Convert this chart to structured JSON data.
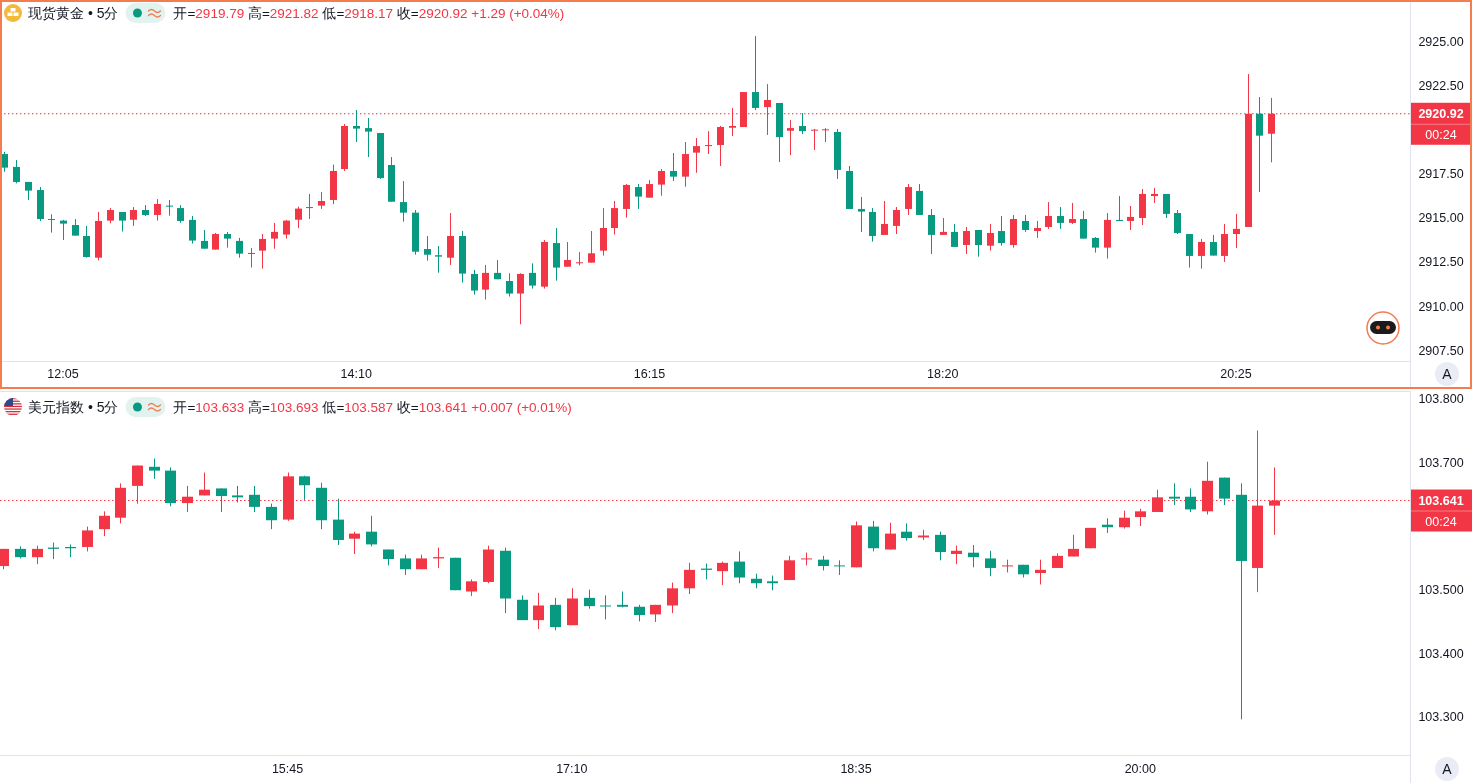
{
  "chart_data": [
    {
      "type": "candlestick",
      "title": "现货黄金 • 5分",
      "subtitle": "开=2919.79 高=2921.82 低=2918.17 收=2920.92 +1.29 (+0.04%)",
      "x": [
        11.6667,
        11.75,
        11.8333,
        11.9167,
        12,
        12.0833,
        12.1667,
        12.25,
        12.3333,
        12.4167,
        12.5,
        12.5833,
        12.6667,
        12.75,
        12.8333,
        12.9167,
        13,
        13.0833,
        13.1667,
        13.25,
        13.3333,
        13.4167,
        13.5,
        13.5833,
        13.6667,
        13.75,
        13.8333,
        13.9167,
        14,
        14.0833,
        14.1667,
        14.25,
        14.3333,
        14.4167,
        14.5,
        14.5833,
        14.6667,
        14.75,
        14.8333,
        14.9167,
        15,
        15.0833,
        15.1667,
        15.25,
        15.3333,
        15.4167,
        15.5,
        15.5833,
        15.6667,
        15.75,
        15.8333,
        15.9167,
        16,
        16.0833,
        16.1667,
        16.25,
        16.3333,
        16.4167,
        16.5,
        16.5833,
        16.6667,
        16.75,
        16.8333,
        16.9167,
        17,
        17.0833,
        17.1667,
        17.25,
        17.3333,
        17.4167,
        17.5,
        17.5833,
        17.6667,
        17.75,
        17.8333,
        17.9167,
        18,
        18.0833,
        18.1667,
        18.25,
        18.3333,
        18.4167,
        18.5,
        18.5833,
        18.6667,
        18.75,
        18.8333,
        18.9167,
        19,
        19.0833,
        19.1667,
        19.25,
        19.3333,
        19.4167,
        19.5,
        19.5833,
        19.6667,
        19.75,
        19.8333,
        19.9167,
        20,
        20.0833,
        20.1667,
        20.25,
        20.3333,
        20.4167,
        20.5,
        20.5833,
        20.6667
      ],
      "ohlc": [
        [
          2918.64,
          2918.77,
          2917.64,
          2917.87
        ],
        [
          2917.91,
          2918.3,
          2916.98,
          2917.06
        ],
        [
          2917.06,
          2917.06,
          2916.04,
          2916.57
        ],
        [
          2916.6,
          2916.77,
          2914.85,
          2914.96
        ],
        [
          2914.96,
          2915.23,
          2914.19,
          2914.91
        ],
        [
          2914.87,
          2914.91,
          2913.77,
          2914.7
        ],
        [
          2914.62,
          2914.96,
          2914.02,
          2914.02
        ],
        [
          2914.0,
          2914.57,
          2912.77,
          2912.81
        ],
        [
          2912.77,
          2915.36,
          2912.62,
          2914.85
        ],
        [
          2914.87,
          2915.58,
          2914.72,
          2915.47
        ],
        [
          2915.36,
          2915.36,
          2914.25,
          2914.87
        ],
        [
          2914.92,
          2915.64,
          2914.57,
          2915.47
        ],
        [
          2915.47,
          2915.75,
          2915.13,
          2915.19
        ],
        [
          2915.19,
          2916.09,
          2914.87,
          2915.81
        ],
        [
          2915.72,
          2916.04,
          2915.15,
          2915.66
        ],
        [
          2915.58,
          2915.75,
          2914.75,
          2914.85
        ],
        [
          2914.91,
          2915.13,
          2913.57,
          2913.74
        ],
        [
          2913.72,
          2914.34,
          2913.28,
          2913.28
        ],
        [
          2913.23,
          2914.17,
          2913.23,
          2914.11
        ],
        [
          2914.11,
          2914.23,
          2913.34,
          2913.85
        ],
        [
          2913.72,
          2913.89,
          2912.77,
          2913.0
        ],
        [
          2912.98,
          2913.32,
          2912.21,
          2913.04
        ],
        [
          2913.17,
          2914.11,
          2912.15,
          2913.83
        ],
        [
          2913.85,
          2914.74,
          2913.28,
          2914.23
        ],
        [
          2914.08,
          2914.91,
          2913.85,
          2914.87
        ],
        [
          2914.92,
          2915.66,
          2914.45,
          2915.55
        ],
        [
          2915.58,
          2916.38,
          2914.96,
          2915.64
        ],
        [
          2915.72,
          2916.49,
          2915.53,
          2915.98
        ],
        [
          2916.04,
          2918.04,
          2915.81,
          2917.68
        ],
        [
          2917.79,
          2920.34,
          2917.68,
          2920.23
        ],
        [
          2920.23,
          2921.13,
          2919.32,
          2920.08
        ],
        [
          2920.11,
          2920.68,
          2918.47,
          2919.91
        ],
        [
          2919.83,
          2919.83,
          2917.23,
          2917.28
        ],
        [
          2918.02,
          2918.47,
          2915.94,
          2915.94
        ],
        [
          2915.92,
          2917.11,
          2914.81,
          2915.32
        ],
        [
          2915.32,
          2915.47,
          2912.94,
          2913.11
        ],
        [
          2913.26,
          2914.0,
          2912.6,
          2912.94
        ],
        [
          2912.91,
          2913.43,
          2911.92,
          2912.83
        ],
        [
          2912.77,
          2915.3,
          2912.36,
          2914.0
        ],
        [
          2914.0,
          2914.28,
          2911.36,
          2911.87
        ],
        [
          2911.85,
          2912.08,
          2910.68,
          2910.91
        ],
        [
          2910.96,
          2912.36,
          2910.4,
          2911.91
        ],
        [
          2911.91,
          2912.64,
          2911.55,
          2911.55
        ],
        [
          2911.45,
          2911.89,
          2910.57,
          2910.74
        ],
        [
          2910.74,
          2911.89,
          2909.0,
          2911.85
        ],
        [
          2911.91,
          2912.45,
          2911.02,
          2911.19
        ],
        [
          2911.13,
          2913.77,
          2911.02,
          2913.66
        ],
        [
          2913.6,
          2914.45,
          2911.47,
          2912.21
        ],
        [
          2912.26,
          2913.66,
          2912.26,
          2912.64
        ],
        [
          2912.47,
          2913.09,
          2912.34,
          2912.51
        ],
        [
          2912.49,
          2914.28,
          2912.49,
          2913.02
        ],
        [
          2913.17,
          2915.58,
          2912.89,
          2914.45
        ],
        [
          2914.45,
          2915.98,
          2914.08,
          2915.58
        ],
        [
          2915.53,
          2916.94,
          2915.04,
          2916.89
        ],
        [
          2916.77,
          2916.94,
          2915.53,
          2916.23
        ],
        [
          2916.17,
          2917.17,
          2916.17,
          2916.94
        ],
        [
          2916.91,
          2917.79,
          2916.28,
          2917.68
        ],
        [
          2917.68,
          2918.7,
          2917.11,
          2917.36
        ],
        [
          2917.36,
          2919.32,
          2916.79,
          2918.64
        ],
        [
          2918.72,
          2919.55,
          2917.58,
          2919.09
        ],
        [
          2919.09,
          2919.94,
          2918.64,
          2919.15
        ],
        [
          2919.15,
          2920.23,
          2917.96,
          2920.17
        ],
        [
          2920.13,
          2921.25,
          2919.66,
          2920.23
        ],
        [
          2920.17,
          2922.15,
          2920.17,
          2922.15
        ],
        [
          2922.15,
          2925.32,
          2921.13,
          2921.25
        ],
        [
          2921.3,
          2922.6,
          2919.72,
          2921.7
        ],
        [
          2921.53,
          2921.53,
          2918.19,
          2919.6
        ],
        [
          2919.96,
          2920.57,
          2918.58,
          2920.11
        ],
        [
          2920.23,
          2920.96,
          2919.77,
          2919.94
        ],
        [
          2919.98,
          2920.06,
          2918.87,
          2920.02
        ],
        [
          2920.0,
          2920.11,
          2919.32,
          2920.04
        ],
        [
          2919.89,
          2920.06,
          2917.23,
          2917.74
        ],
        [
          2917.68,
          2917.96,
          2915.53,
          2915.53
        ],
        [
          2915.53,
          2916.21,
          2914.23,
          2915.38
        ],
        [
          2915.36,
          2915.58,
          2913.68,
          2914.0
        ],
        [
          2914.06,
          2915.98,
          2914.06,
          2914.68
        ],
        [
          2914.57,
          2915.64,
          2914.11,
          2915.47
        ],
        [
          2915.53,
          2916.94,
          2915.19,
          2916.77
        ],
        [
          2916.55,
          2916.94,
          2915.19,
          2915.19
        ],
        [
          2915.19,
          2915.53,
          2912.98,
          2914.06
        ],
        [
          2914.06,
          2915.02,
          2914.06,
          2914.23
        ],
        [
          2914.23,
          2914.68,
          2913.38,
          2913.38
        ],
        [
          2913.49,
          2914.51,
          2912.98,
          2914.28
        ],
        [
          2914.34,
          2914.34,
          2912.83,
          2913.49
        ],
        [
          2913.45,
          2914.68,
          2913.17,
          2914.17
        ],
        [
          2914.28,
          2915.13,
          2913.45,
          2913.6
        ],
        [
          2913.49,
          2915.19,
          2913.34,
          2914.96
        ],
        [
          2914.85,
          2915.19,
          2914.23,
          2914.34
        ],
        [
          2914.28,
          2914.85,
          2913.89,
          2914.45
        ],
        [
          2914.51,
          2915.92,
          2914.4,
          2915.13
        ],
        [
          2915.13,
          2915.64,
          2914.4,
          2914.74
        ],
        [
          2914.74,
          2915.87,
          2914.68,
          2914.96
        ],
        [
          2914.96,
          2915.42,
          2913.85,
          2913.85
        ],
        [
          2913.89,
          2913.94,
          2913.06,
          2913.34
        ],
        [
          2913.34,
          2915.3,
          2912.72,
          2914.91
        ],
        [
          2914.91,
          2916.26,
          2914.85,
          2914.85
        ],
        [
          2914.85,
          2915.7,
          2914.34,
          2915.08
        ],
        [
          2915.02,
          2916.66,
          2914.62,
          2916.38
        ],
        [
          2916.26,
          2916.72,
          2915.87,
          2916.38
        ],
        [
          2916.38,
          2916.38,
          2915.02,
          2915.25
        ],
        [
          2915.3,
          2915.47,
          2914.11,
          2914.17
        ],
        [
          2914.11,
          2914.11,
          2912.21,
          2912.87
        ],
        [
          2912.87,
          2913.83,
          2912.15,
          2913.66
        ],
        [
          2913.66,
          2914.06,
          2912.89,
          2912.89
        ],
        [
          2912.87,
          2914.68,
          2912.53,
          2914.11
        ],
        [
          2914.11,
          2915.25,
          2913.32,
          2914.4
        ],
        [
          2914.51,
          2923.17,
          2914.51,
          2920.92
        ],
        [
          2920.92,
          2921.87,
          2916.49,
          2919.68
        ],
        [
          2919.79,
          2921.82,
          2918.17,
          2920.92
        ]
      ],
      "colors": [
        "#089981",
        "#089981",
        "#089981",
        "#089981",
        "#089981",
        "#089981",
        "#089981",
        "#089981",
        "#f23645",
        "#f23645",
        "#089981",
        "#f23645",
        "#089981",
        "#f23645",
        "#089981",
        "#089981",
        "#089981",
        "#089981",
        "#f23645",
        "#089981",
        "#089981",
        "#f23645",
        "#f23645",
        "#f23645",
        "#f23645",
        "#f23645",
        "#f23645",
        "#f23645",
        "#f23645",
        "#f23645",
        "#089981",
        "#089981",
        "#089981",
        "#089981",
        "#089981",
        "#089981",
        "#089981",
        "#089981",
        "#f23645",
        "#089981",
        "#089981",
        "#f23645",
        "#089981",
        "#089981",
        "#f23645",
        "#089981",
        "#f23645",
        "#089981",
        "#f23645",
        "#f23645",
        "#f23645",
        "#f23645",
        "#f23645",
        "#f23645",
        "#089981",
        "#f23645",
        "#f23645",
        "#089981",
        "#f23645",
        "#f23645",
        "#f23645",
        "#f23645",
        "#f23645",
        "#f23645",
        "#089981",
        "#f23645",
        "#089981",
        "#f23645",
        "#089981",
        "#f23645",
        "#f23645",
        "#089981",
        "#089981",
        "#089981",
        "#089981",
        "#f23645",
        "#f23645",
        "#f23645",
        "#089981",
        "#089981",
        "#f23645",
        "#089981",
        "#f23645",
        "#089981",
        "#f23645",
        "#089981",
        "#f23645",
        "#089981",
        "#f23645",
        "#f23645",
        "#089981",
        "#f23645",
        "#089981",
        "#089981",
        "#f23645",
        "#089981",
        "#f23645",
        "#f23645",
        "#f23645",
        "#089981",
        "#089981",
        "#089981",
        "#f23645",
        "#089981",
        "#f23645",
        "#f23645",
        "#f23645",
        "#089981",
        "#f23645"
      ],
      "xlim": [
        11.636,
        21.653
      ],
      "xticks": [
        {
          "value": 12.0833,
          "label": "12:05"
        },
        {
          "value": 14.1667,
          "label": "14:10"
        },
        {
          "value": 16.25,
          "label": "16:15"
        },
        {
          "value": 18.3333,
          "label": "18:20"
        },
        {
          "value": 20.4167,
          "label": "20:25"
        }
      ],
      "ylim": [
        2906.92,
        2927.25
      ],
      "yticks": [
        {
          "value": 2907.5,
          "label": "2907.50"
        },
        {
          "value": 2910,
          "label": "2910.00"
        },
        {
          "value": 2912.5,
          "label": "2912.50"
        },
        {
          "value": 2915,
          "label": "2915.00"
        },
        {
          "value": 2917.5,
          "label": "2917.50"
        },
        {
          "value": 2922.5,
          "label": "2922.50"
        },
        {
          "value": 2925,
          "label": "2925.00"
        }
      ],
      "ref_lines": [
        {
          "axis": "y",
          "value": 2920.92,
          "label": "2920.92",
          "color": "#f23645",
          "line_style": "dotted"
        }
      ],
      "annotations": [
        "00:24",
        "A"
      ]
    },
    {
      "type": "candlestick",
      "title": "美元指数 • 5分",
      "subtitle": "开=103.633 高=103.693 低=103.587 收=103.641 +0.007 (+0.01%)",
      "x": [
        14.3333,
        14.4167,
        14.5,
        14.5833,
        14.6667,
        14.75,
        14.8333,
        14.9167,
        15,
        15.0833,
        15.1667,
        15.25,
        15.3333,
        15.4167,
        15.5,
        15.5833,
        15.6667,
        15.75,
        15.8333,
        15.9167,
        16,
        16.0833,
        16.1667,
        16.25,
        16.3333,
        16.4167,
        16.5,
        16.5833,
        16.6667,
        16.75,
        16.8333,
        16.9167,
        17,
        17.0833,
        17.1667,
        17.25,
        17.3333,
        17.4167,
        17.5,
        17.5833,
        17.6667,
        17.75,
        17.8333,
        17.9167,
        18,
        18.0833,
        18.1667,
        18.25,
        18.3333,
        18.4167,
        18.5,
        18.5833,
        18.6667,
        18.75,
        18.8333,
        18.9167,
        19,
        19.0833,
        19.1667,
        19.25,
        19.3333,
        19.4167,
        19.5,
        19.5833,
        19.6667,
        19.75,
        19.8333,
        19.9167,
        20,
        20.0833,
        20.1667,
        20.25,
        20.3333,
        20.4167,
        20.5,
        20.5833,
        20.6667
      ],
      "ohlc": [
        [
          103.538,
          103.565,
          103.533,
          103.565
        ],
        [
          103.565,
          103.569,
          103.55,
          103.552
        ],
        [
          103.552,
          103.57,
          103.541,
          103.565
        ],
        [
          103.567,
          103.575,
          103.549,
          103.565
        ],
        [
          103.568,
          103.572,
          103.552,
          103.566
        ],
        [
          103.568,
          103.6,
          103.561,
          103.594
        ],
        [
          103.596,
          103.624,
          103.585,
          103.617
        ],
        [
          103.614,
          103.668,
          103.605,
          103.661
        ],
        [
          103.664,
          103.696,
          103.636,
          103.696
        ],
        [
          103.694,
          103.707,
          103.675,
          103.688
        ],
        [
          103.688,
          103.693,
          103.632,
          103.637
        ],
        [
          103.637,
          103.664,
          103.623,
          103.647
        ],
        [
          103.649,
          103.685,
          103.649,
          103.658
        ],
        [
          103.66,
          103.66,
          103.623,
          103.648
        ],
        [
          103.649,
          103.664,
          103.638,
          103.646
        ],
        [
          103.65,
          103.664,
          103.623,
          103.631
        ],
        [
          103.631,
          103.636,
          103.596,
          103.61
        ],
        [
          103.611,
          103.685,
          103.609,
          103.679
        ],
        [
          103.679,
          103.68,
          103.642,
          103.665
        ],
        [
          103.661,
          103.669,
          103.596,
          103.61
        ],
        [
          103.611,
          103.644,
          103.571,
          103.579
        ],
        [
          103.581,
          103.592,
          103.557,
          103.589
        ],
        [
          103.592,
          103.617,
          103.569,
          103.572
        ],
        [
          103.564,
          103.564,
          103.539,
          103.549
        ],
        [
          103.55,
          103.556,
          103.524,
          103.533
        ],
        [
          103.533,
          103.556,
          103.533,
          103.55
        ],
        [
          103.55,
          103.567,
          103.535,
          103.552
        ],
        [
          103.551,
          103.551,
          103.5,
          103.5
        ],
        [
          103.498,
          103.517,
          103.491,
          103.514
        ],
        [
          103.513,
          103.57,
          103.511,
          103.564
        ],
        [
          103.562,
          103.567,
          103.464,
          103.487
        ],
        [
          103.485,
          103.492,
          103.453,
          103.453
        ],
        [
          103.453,
          103.496,
          103.439,
          103.476
        ],
        [
          103.477,
          103.488,
          103.437,
          103.442
        ],
        [
          103.445,
          103.503,
          103.445,
          103.487
        ],
        [
          103.488,
          103.501,
          103.471,
          103.475
        ],
        [
          103.476,
          103.492,
          103.454,
          103.475
        ],
        [
          103.477,
          103.498,
          103.473,
          103.474
        ],
        [
          103.474,
          103.477,
          103.451,
          103.461
        ],
        [
          103.462,
          103.477,
          103.45,
          103.477
        ],
        [
          103.476,
          103.512,
          103.464,
          103.503
        ],
        [
          103.503,
          103.543,
          103.494,
          103.532
        ],
        [
          103.534,
          103.542,
          103.517,
          103.532
        ],
        [
          103.53,
          103.545,
          103.508,
          103.543
        ],
        [
          103.545,
          103.561,
          103.511,
          103.52
        ],
        [
          103.518,
          103.526,
          103.503,
          103.511
        ],
        [
          103.514,
          103.523,
          103.5,
          103.511
        ],
        [
          103.516,
          103.554,
          103.516,
          103.547
        ],
        [
          103.549,
          103.559,
          103.539,
          103.55
        ],
        [
          103.548,
          103.554,
          103.531,
          103.538
        ],
        [
          103.539,
          103.547,
          103.524,
          103.538
        ],
        [
          103.536,
          103.608,
          103.536,
          103.602
        ],
        [
          103.6,
          103.609,
          103.561,
          103.566
        ],
        [
          103.564,
          103.606,
          103.564,
          103.589
        ],
        [
          103.592,
          103.605,
          103.578,
          103.582
        ],
        [
          103.583,
          103.595,
          103.579,
          103.586
        ],
        [
          103.587,
          103.592,
          103.547,
          103.56
        ],
        [
          103.557,
          103.57,
          103.541,
          103.562
        ],
        [
          103.559,
          103.571,
          103.536,
          103.552
        ],
        [
          103.55,
          103.562,
          103.522,
          103.535
        ],
        [
          103.538,
          103.548,
          103.528,
          103.539
        ],
        [
          103.54,
          103.54,
          103.52,
          103.525
        ],
        [
          103.527,
          103.548,
          103.509,
          103.532
        ],
        [
          103.535,
          103.558,
          103.535,
          103.554
        ],
        [
          103.553,
          103.587,
          103.553,
          103.565
        ],
        [
          103.566,
          103.598,
          103.566,
          103.598
        ],
        [
          103.603,
          103.613,
          103.59,
          103.599
        ],
        [
          103.599,
          103.625,
          103.597,
          103.614
        ],
        [
          103.615,
          103.628,
          103.601,
          103.624
        ],
        [
          103.623,
          103.658,
          103.623,
          103.646
        ],
        [
          103.647,
          103.668,
          103.634,
          103.644
        ],
        [
          103.647,
          103.66,
          103.623,
          103.627
        ],
        [
          103.624,
          103.702,
          103.619,
          103.672
        ],
        [
          103.677,
          103.677,
          103.634,
          103.644
        ],
        [
          103.65,
          103.668,
          103.297,
          103.546
        ],
        [
          103.535,
          103.751,
          103.497,
          103.633
        ],
        [
          103.633,
          103.693,
          103.587,
          103.641
        ]
      ],
      "colors": [
        "#f23645",
        "#089981",
        "#f23645",
        "#089981",
        "#089981",
        "#f23645",
        "#f23645",
        "#f23645",
        "#f23645",
        "#089981",
        "#089981",
        "#f23645",
        "#f23645",
        "#089981",
        "#089981",
        "#089981",
        "#089981",
        "#f23645",
        "#089981",
        "#089981",
        "#089981",
        "#f23645",
        "#089981",
        "#089981",
        "#089981",
        "#f23645",
        "#f23645",
        "#089981",
        "#f23645",
        "#f23645",
        "#089981",
        "#089981",
        "#f23645",
        "#089981",
        "#f23645",
        "#089981",
        "#089981",
        "#089981",
        "#089981",
        "#f23645",
        "#f23645",
        "#f23645",
        "#089981",
        "#f23645",
        "#089981",
        "#089981",
        "#089981",
        "#f23645",
        "#f23645",
        "#089981",
        "#089981",
        "#f23645",
        "#089981",
        "#f23645",
        "#089981",
        "#f23645",
        "#089981",
        "#f23645",
        "#089981",
        "#089981",
        "#f23645",
        "#089981",
        "#f23645",
        "#f23645",
        "#f23645",
        "#f23645",
        "#089981",
        "#f23645",
        "#f23645",
        "#f23645",
        "#089981",
        "#089981",
        "#f23645",
        "#089981",
        "#089981",
        "#f23645",
        "#f23645"
      ],
      "xlim": [
        14.317,
        21.344
      ],
      "xticks": [
        {
          "value": 15.75,
          "label": "15:45"
        },
        {
          "value": 17.1667,
          "label": "17:10"
        },
        {
          "value": 18.5833,
          "label": "18:35"
        },
        {
          "value": 20,
          "label": "20:00"
        }
      ],
      "ylim": [
        103.241,
        103.81
      ],
      "yticks": [
        {
          "value": 103.3,
          "label": "103.300"
        },
        {
          "value": 103.4,
          "label": "103.400"
        },
        {
          "value": 103.5,
          "label": "103.500"
        },
        {
          "value": 103.7,
          "label": "103.700"
        },
        {
          "value": 103.8,
          "label": "103.800"
        }
      ],
      "ref_lines": [
        {
          "axis": "y",
          "value": 103.641,
          "label": "103.641",
          "color": "#f23645",
          "line_style": "dotted"
        }
      ],
      "annotations": [
        "00:24",
        "A"
      ]
    }
  ]
}
